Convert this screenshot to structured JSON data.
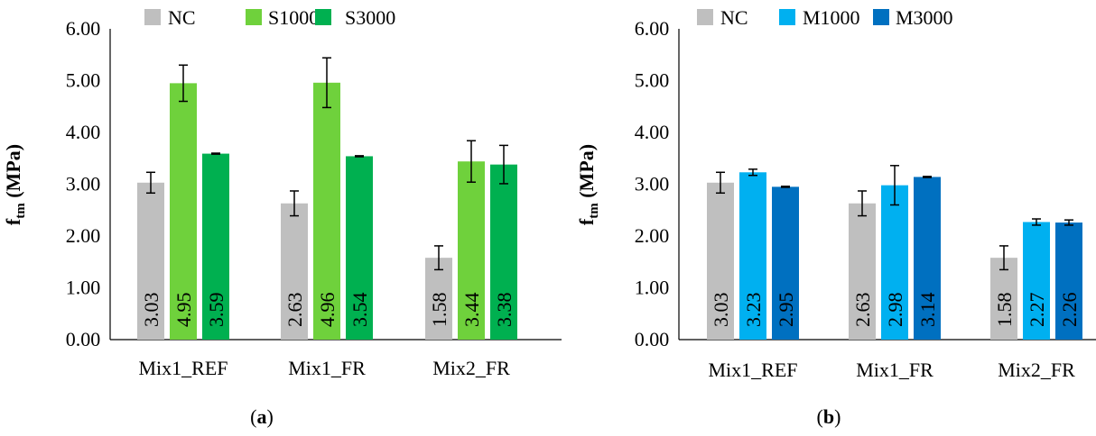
{
  "chart_data": [
    {
      "type": "bar",
      "panel_label": "a",
      "categories": [
        "Mix1_REF",
        "Mix1_FR",
        "Mix2_FR"
      ],
      "ylabel": {
        "main": "f",
        "sub": "tm",
        "unit": " (MPa)"
      },
      "ylim": [
        0,
        6
      ],
      "yticks": [
        "0.00",
        "1.00",
        "2.00",
        "3.00",
        "4.00",
        "5.00",
        "6.00"
      ],
      "grid": false,
      "legend_position": "top",
      "series": [
        {
          "name": "NC",
          "color": "#bfbfbf",
          "values": [
            3.03,
            2.63,
            1.58
          ],
          "labels": [
            "3.03",
            "2.63",
            "1.58"
          ],
          "errors": [
            0.2,
            0.24,
            0.23
          ]
        },
        {
          "name": "S1000",
          "color": "#6fd13c",
          "values": [
            4.95,
            4.96,
            3.44
          ],
          "labels": [
            "4.95",
            "4.96",
            "3.44"
          ],
          "errors": [
            0.35,
            0.48,
            0.4
          ]
        },
        {
          "name": "S3000",
          "color": "#00b050",
          "values": [
            3.59,
            3.54,
            3.38
          ],
          "labels": [
            "3.59",
            "3.54",
            "3.38"
          ],
          "errors": [
            0.01,
            0.01,
            0.37
          ]
        }
      ]
    },
    {
      "type": "bar",
      "panel_label": "b",
      "categories": [
        "Mix1_REF",
        "Mix1_FR",
        "Mix2_FR"
      ],
      "ylabel": {
        "main": "f",
        "sub": "tm",
        "unit": " (MPa)"
      },
      "ylim": [
        0,
        6
      ],
      "yticks": [
        "0.00",
        "1.00",
        "2.00",
        "3.00",
        "4.00",
        "5.00",
        "6.00"
      ],
      "grid": false,
      "legend_position": "top",
      "series": [
        {
          "name": "NC",
          "color": "#bfbfbf",
          "values": [
            3.03,
            2.63,
            1.58
          ],
          "labels": [
            "3.03",
            "2.63",
            "1.58"
          ],
          "errors": [
            0.2,
            0.24,
            0.23
          ]
        },
        {
          "name": "M1000",
          "color": "#00b0f0",
          "values": [
            3.23,
            2.98,
            2.27
          ],
          "labels": [
            "3.23",
            "2.98",
            "2.27"
          ],
          "errors": [
            0.06,
            0.38,
            0.06
          ]
        },
        {
          "name": "M3000",
          "color": "#0070c0",
          "values": [
            2.95,
            3.14,
            2.26
          ],
          "labels": [
            "2.95",
            "3.14",
            "2.26"
          ],
          "errors": [
            0.01,
            0.01,
            0.05
          ]
        }
      ]
    }
  ]
}
